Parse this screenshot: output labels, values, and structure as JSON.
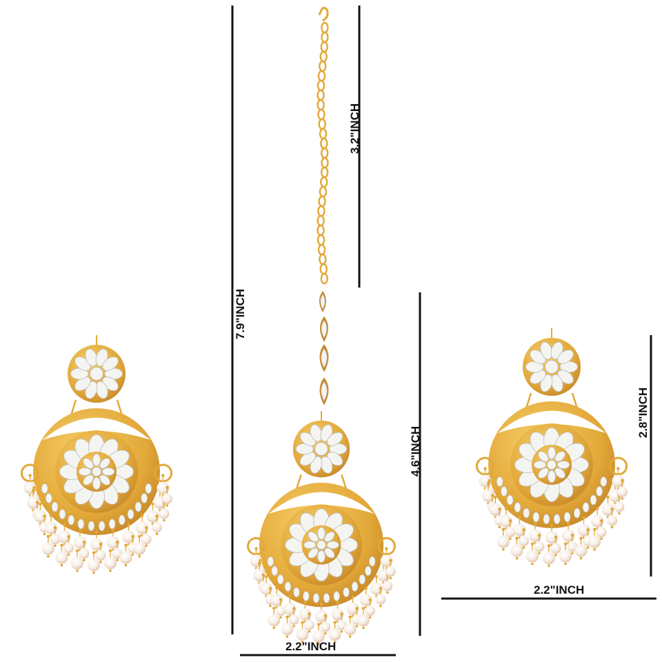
{
  "dimensions": {
    "total_length": "7.9\"INCH",
    "chain_length": "3.2\"INCH",
    "tikka_pendant_height": "4.6\"INCH",
    "tikka_pendant_width": "2.2\"INCH",
    "earring_height": "2.8\"INCH",
    "earring_width": "2.2\"INCH"
  },
  "colors": {
    "background": "#ffffff",
    "measure_line": "#111111",
    "gold": "#e2a838",
    "gold_dark": "#c8892a",
    "kundan_stone": "#f4f4f1",
    "pearl": "#f6eee6",
    "pearl_shade": "#e8cfb8"
  }
}
